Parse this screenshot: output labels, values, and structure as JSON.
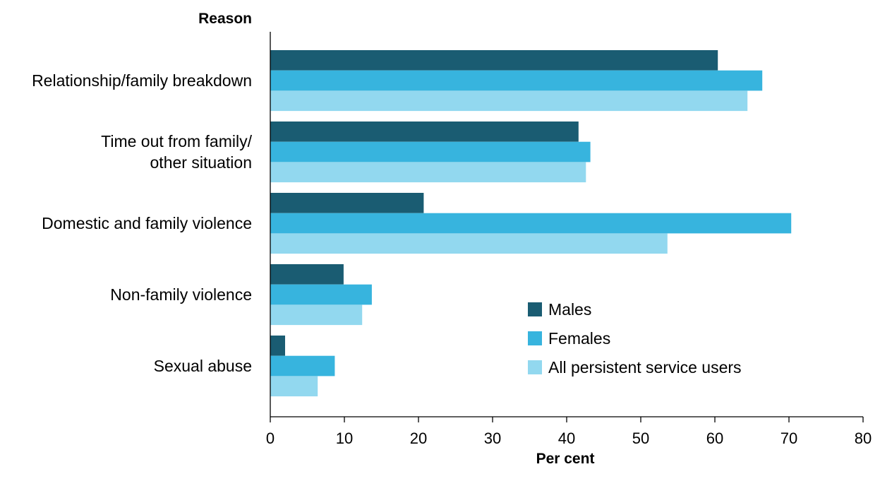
{
  "chart_data": {
    "type": "bar",
    "orientation": "horizontal",
    "ylabel": "Reason",
    "xlabel": "Per cent",
    "xlim": [
      0,
      80
    ],
    "xticks": [
      "0",
      "10",
      "20",
      "30",
      "40",
      "50",
      "60",
      "70",
      "80"
    ],
    "grid": false,
    "legend_position": "bottom-right",
    "categories": [
      {
        "lines": [
          "Relationship/family breakdown"
        ]
      },
      {
        "lines": [
          "Time out from family/",
          "other situation"
        ]
      },
      {
        "lines": [
          "Domestic and family violence"
        ]
      },
      {
        "lines": [
          "Non-family violence"
        ]
      },
      {
        "lines": [
          "Sexual abuse"
        ]
      }
    ],
    "series": [
      {
        "name": "Males",
        "color": "#1a5c72",
        "values": [
          60.4,
          41.6,
          20.7,
          9.9,
          2.0
        ]
      },
      {
        "name": "Females",
        "color": "#37b4de",
        "values": [
          66.4,
          43.2,
          70.3,
          13.7,
          8.7
        ]
      },
      {
        "name": "All persistent service users",
        "color": "#92d8ef",
        "values": [
          64.4,
          42.6,
          53.6,
          12.4,
          6.4
        ]
      }
    ]
  }
}
